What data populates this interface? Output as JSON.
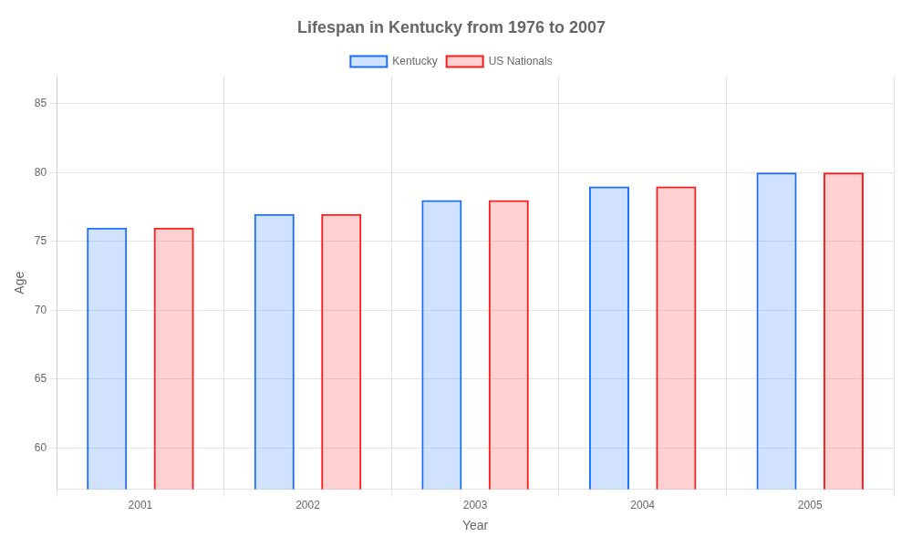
{
  "chart_data": {
    "type": "bar",
    "title": "Lifespan in Kentucky from 1976 to 2007",
    "x_label": "Year",
    "y_label": "Age",
    "categories": [
      "2001",
      "2002",
      "2003",
      "2004",
      "2005"
    ],
    "series": [
      {
        "name": "Kentucky",
        "color": "#1a6eff",
        "values": [
          76,
          77,
          78,
          79,
          80
        ]
      },
      {
        "name": "US Nationals",
        "color": "#ff1a1a",
        "values": [
          76,
          77,
          78,
          79,
          80
        ]
      }
    ],
    "ylim": [
      57,
      87
    ],
    "yticks": [
      60,
      65,
      70,
      75,
      80,
      85
    ],
    "grid": true,
    "legend": "top"
  }
}
